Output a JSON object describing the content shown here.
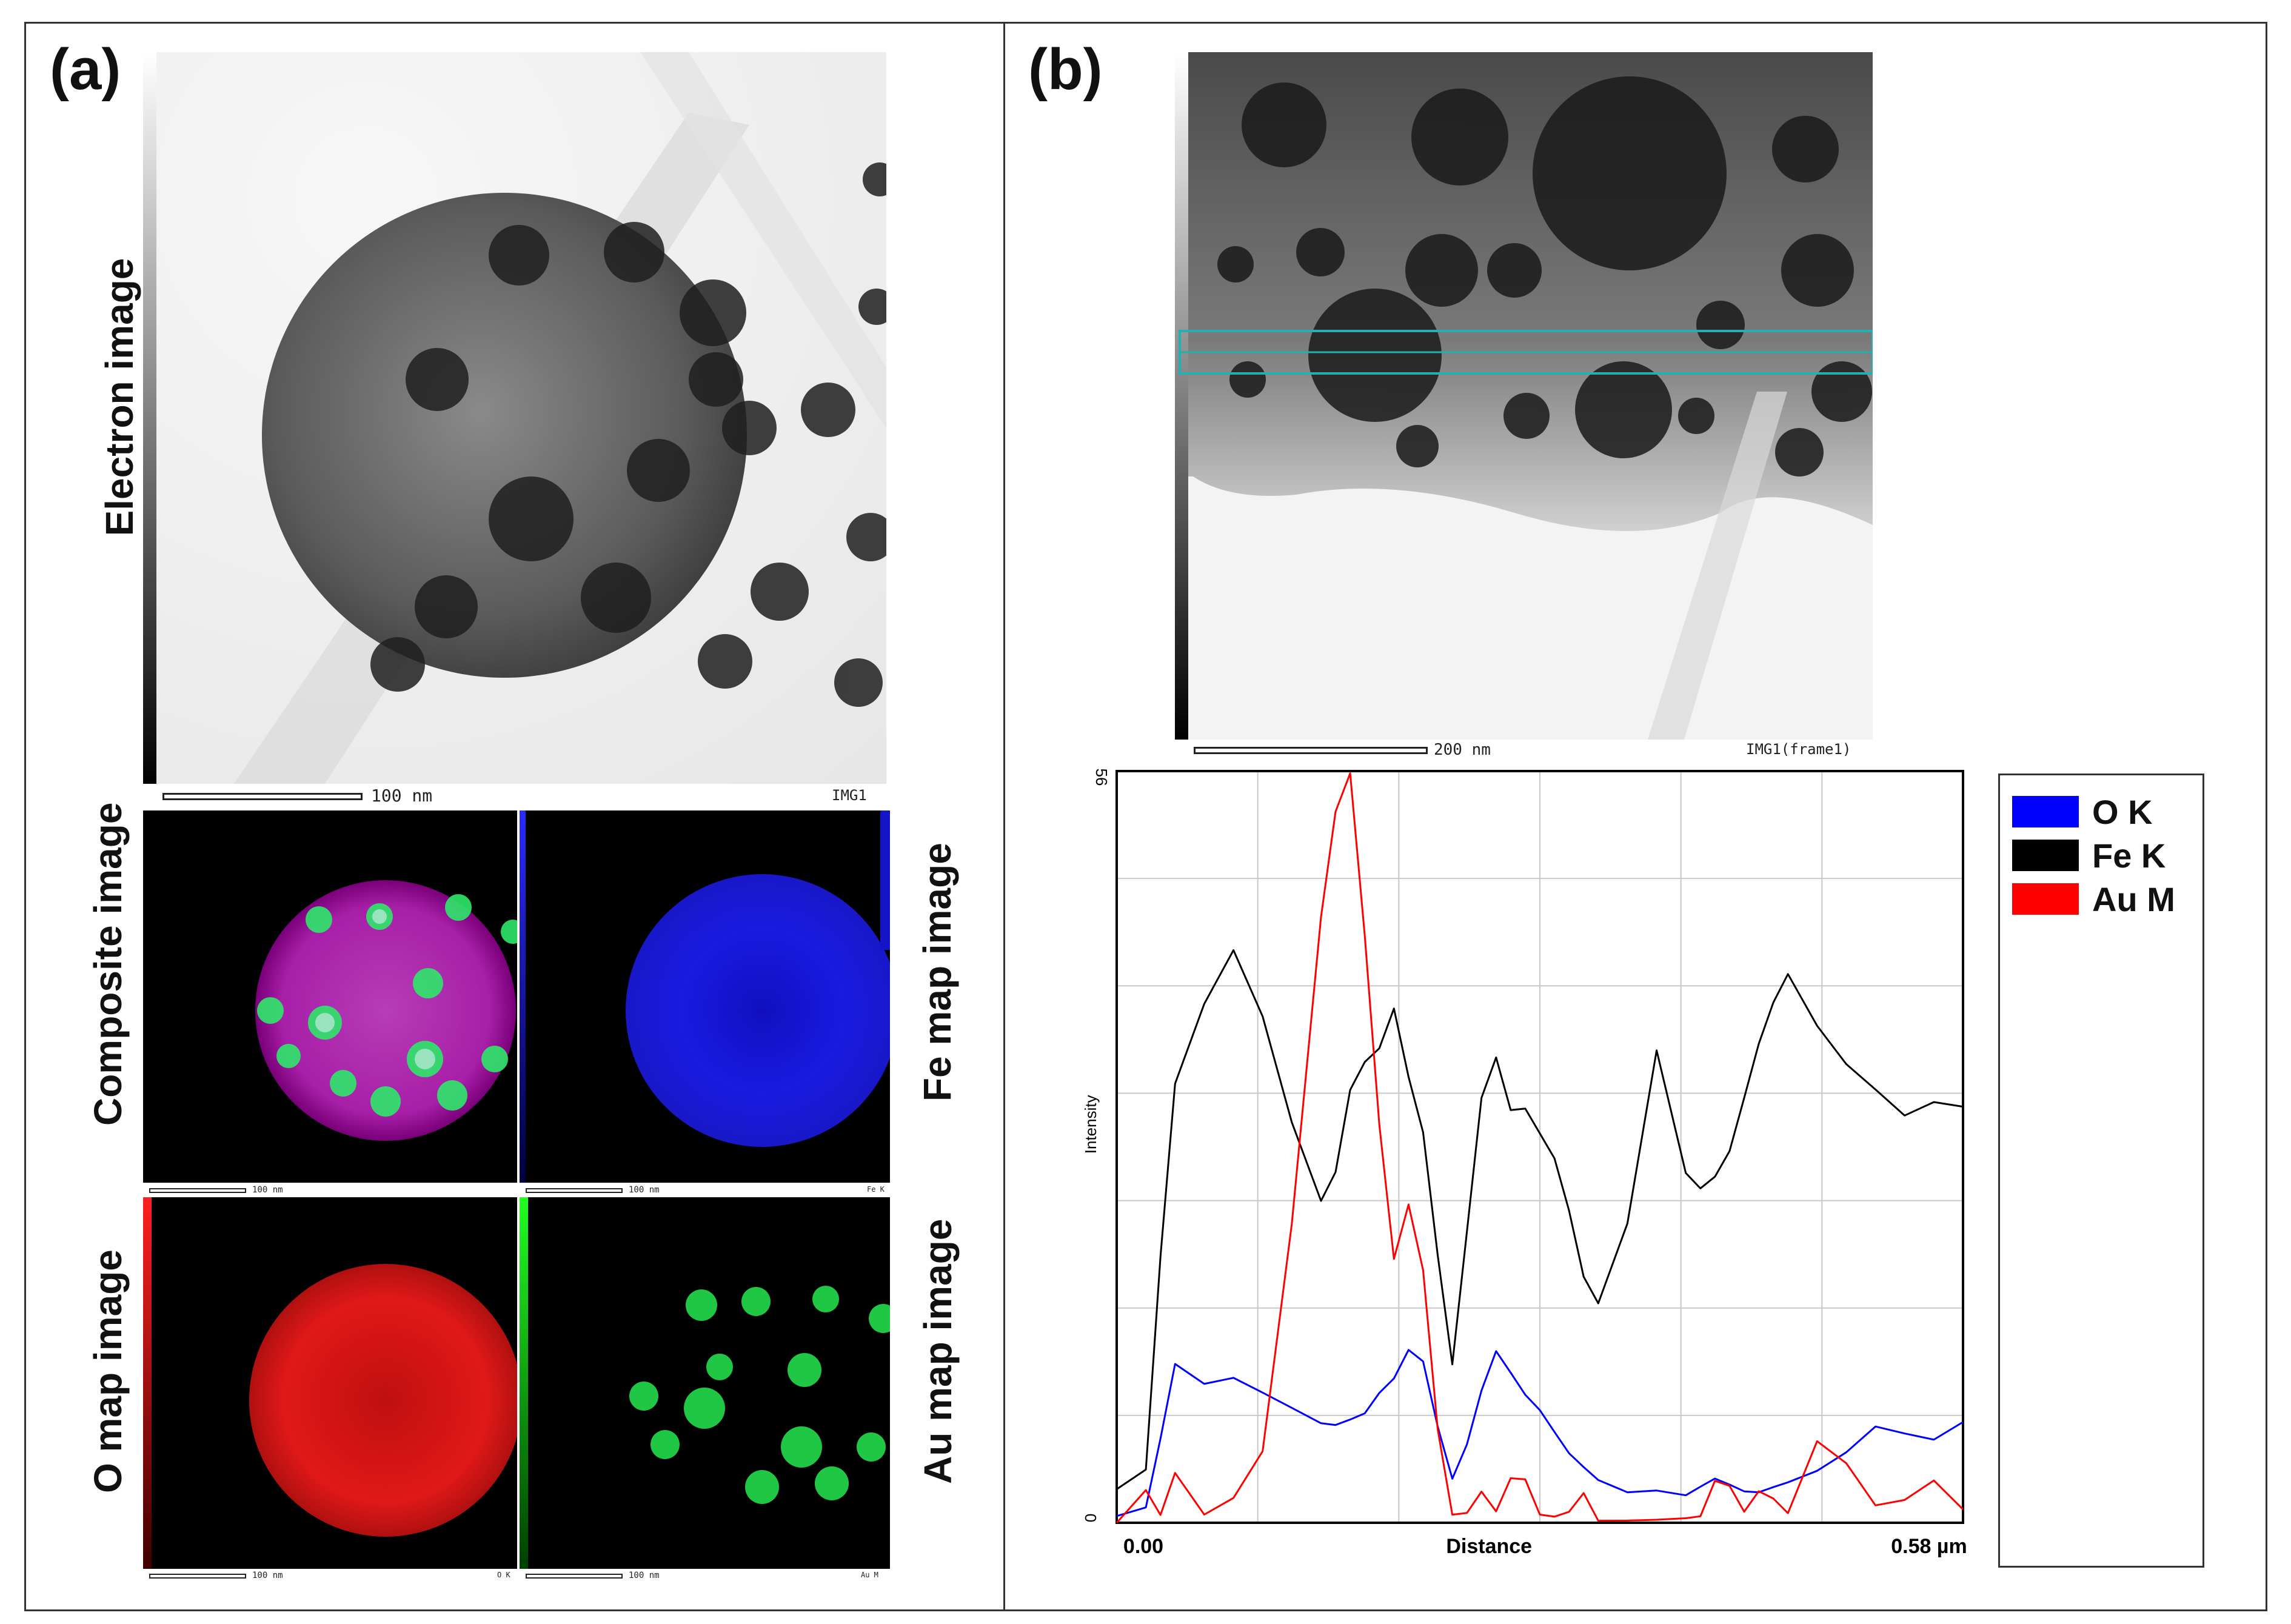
{
  "panel_a": {
    "label": "(a)",
    "electron": {
      "side_label": "Electron image",
      "scale_text": "100 nm",
      "img_id": "IMG1"
    },
    "composite": {
      "side_label": "Composite image",
      "scale_text": "100 nm"
    },
    "fe_map": {
      "side_label": "Fe map image",
      "scale_text": "100 nm",
      "channel": "Fe K"
    },
    "o_map": {
      "side_label": "O map image",
      "scale_text": "100 nm",
      "channel": "O K"
    },
    "au_map": {
      "side_label": "Au map image",
      "scale_text": "100 nm",
      "channel": "Au M"
    }
  },
  "panel_b": {
    "label": "(b)",
    "electron": {
      "scale_text": "200 nm",
      "img_id": "IMG1(frame1)"
    }
  },
  "colors": {
    "O K": "#0000ff",
    "Fe K": "#000000",
    "Au M": "#ff0000"
  },
  "chart_data": {
    "type": "line",
    "title": "",
    "xlabel": "Distance",
    "ylabel": "Intensity",
    "xlim": [
      0,
      0.58
    ],
    "ylim": [
      0,
      56
    ],
    "x_tick_labels": [
      "0.00",
      "0.58 µm"
    ],
    "y_tick_labels": [
      "0",
      "56"
    ],
    "grid": true,
    "legend": "right",
    "x": [
      0.0,
      0.02,
      0.03,
      0.04,
      0.06,
      0.08,
      0.1,
      0.12,
      0.14,
      0.15,
      0.16,
      0.17,
      0.18,
      0.19,
      0.2,
      0.21,
      0.22,
      0.23,
      0.24,
      0.25,
      0.26,
      0.27,
      0.28,
      0.29,
      0.3,
      0.31,
      0.32,
      0.33,
      0.35,
      0.37,
      0.39,
      0.4,
      0.41,
      0.42,
      0.43,
      0.44,
      0.45,
      0.46,
      0.48,
      0.5,
      0.52,
      0.54,
      0.56,
      0.58
    ],
    "series": [
      {
        "name": "O K",
        "color": "#0000ff",
        "values": [
          0.5,
          1.0,
          6.0,
          11.5,
          10.0,
          10.5,
          9.5,
          8.5,
          7.5,
          7.5,
          8.0,
          8.5,
          10.0,
          11.0,
          13.0,
          12.0,
          7.0,
          3.0,
          5.5,
          9.5,
          12.5,
          11.0,
          9.5,
          8.5,
          7.0,
          5.5,
          4.5,
          3.5,
          2.5,
          2.5,
          2.0,
          2.5,
          3.0,
          2.5,
          2.0,
          2.0,
          2.5,
          3.0,
          4.0,
          5.5,
          7.5,
          7.0,
          6.5,
          7.5
        ]
      },
      {
        "name": "Fe K",
        "color": "#000000",
        "values": [
          2.5,
          4.0,
          20.0,
          33.0,
          39.0,
          43.0,
          38.0,
          30.0,
          24.0,
          26.0,
          32.0,
          34.0,
          35.0,
          38.0,
          33.0,
          29.0,
          20.0,
          12.0,
          22.0,
          32.0,
          35.0,
          31.0,
          31.0,
          29.0,
          27.0,
          23.0,
          18.0,
          16.0,
          22.0,
          35.0,
          26.0,
          25.0,
          26.0,
          28.0,
          32.0,
          36.0,
          39.0,
          41.0,
          37.0,
          34.0,
          32.0,
          30.0,
          31.0,
          31.0
        ]
      },
      {
        "name": "Au M",
        "color": "#ff0000",
        "values": [
          0.0,
          2.5,
          0.5,
          3.5,
          0.3,
          1.5,
          5.0,
          22.0,
          45.0,
          53.0,
          56.0,
          44.0,
          30.0,
          20.0,
          24.0,
          19.0,
          7.0,
          0.5,
          0.5,
          2.0,
          0.5,
          3.0,
          3.0,
          0.5,
          0.5,
          1.0,
          2.5,
          0.5,
          0.5,
          0.5,
          0.5,
          0.5,
          3.0,
          2.5,
          0.5,
          2.0,
          1.5,
          0.5,
          6.0,
          4.5,
          1.5,
          2.0,
          3.5,
          1.0
        ]
      }
    ]
  }
}
